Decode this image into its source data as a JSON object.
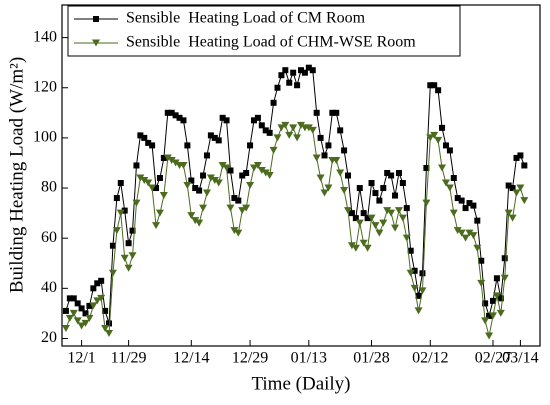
{
  "chart_data": {
    "type": "line",
    "xlabel": "Time (Daily)",
    "ylabel": "Building Heating Load (W/m²)",
    "x": [
      0,
      1,
      2,
      3,
      4,
      5,
      6,
      7,
      8,
      9,
      10,
      11,
      12,
      13,
      14,
      15,
      16,
      17,
      18,
      19,
      20,
      21,
      22,
      23,
      24,
      25,
      26,
      27,
      28,
      29,
      30,
      31,
      32,
      33,
      34,
      35,
      36,
      37,
      38,
      39,
      40,
      41,
      42,
      43,
      44,
      45,
      46,
      47,
      48,
      49,
      50,
      51,
      52,
      53,
      54,
      55,
      56,
      57,
      58,
      59,
      60,
      61,
      62,
      63,
      64,
      65,
      66,
      67,
      68,
      69,
      70,
      71,
      72,
      73,
      74,
      75,
      76,
      77,
      78,
      79,
      80,
      81,
      82,
      83,
      84,
      85,
      86,
      87,
      88,
      89,
      90,
      91,
      92,
      93,
      94,
      95,
      96,
      97,
      98,
      99,
      100,
      101,
      102,
      103,
      104,
      105,
      106,
      107,
      108,
      109,
      110,
      111,
      112,
      113,
      114,
      115,
      116,
      117
    ],
    "xlim": [
      -1,
      121
    ],
    "xticks": [
      {
        "value": 4,
        "label": "12/1"
      },
      {
        "value": 16,
        "label": "11/29"
      },
      {
        "value": 32,
        "label": "12/14"
      },
      {
        "value": 47,
        "label": "12/29"
      },
      {
        "value": 62,
        "label": "01/13"
      },
      {
        "value": 78,
        "label": "01/28"
      },
      {
        "value": 93,
        "label": "02/12"
      },
      {
        "value": 109,
        "label": "02/27"
      },
      {
        "value": 116,
        "label": "03/14"
      }
    ],
    "ylim": [
      17,
      153
    ],
    "yticks": [
      20,
      40,
      60,
      80,
      100,
      120,
      140
    ],
    "legend": "upper left",
    "series": [
      {
        "name": "Sensible  Heating Load of CM Room",
        "color": "#000000",
        "marker": "square",
        "values": [
          31,
          36,
          36,
          34,
          32,
          30,
          33,
          40,
          42,
          43,
          31,
          26,
          57,
          76,
          82,
          71,
          58,
          63,
          89,
          101,
          100,
          98,
          97,
          80,
          84,
          92,
          110,
          110,
          109,
          108,
          107,
          97,
          83,
          80,
          79,
          85,
          93,
          101,
          100,
          99,
          108,
          107,
          87,
          76,
          75,
          85,
          86,
          97,
          107,
          108,
          105,
          103,
          102,
          114,
          120,
          125,
          127,
          122,
          126,
          121,
          127,
          126,
          128,
          127,
          110,
          100,
          93,
          97,
          110,
          110,
          103,
          95,
          85,
          70,
          68,
          80,
          70,
          68,
          82,
          78,
          75,
          80,
          86,
          85,
          77,
          86,
          82,
          72,
          55,
          47,
          37,
          46,
          88,
          121,
          121,
          119,
          104,
          97,
          95,
          84,
          76,
          75,
          72,
          74,
          73,
          67,
          51,
          34,
          29,
          35,
          44,
          36,
          52,
          81,
          80,
          92,
          93,
          89
        ]
      },
      {
        "name": "Sensible  Heating Load of CHM-WSE Room",
        "color": "#4b6b1e",
        "marker": "triangle-down",
        "values": [
          24,
          28,
          30,
          27,
          25,
          26,
          28,
          33,
          35,
          36,
          24,
          22,
          46,
          63,
          70,
          52,
          48,
          53,
          74,
          84,
          83,
          82,
          80,
          65,
          70,
          77,
          92,
          91,
          90,
          89,
          89,
          81,
          69,
          67,
          66,
          72,
          78,
          84,
          83,
          82,
          89,
          88,
          72,
          63,
          62,
          71,
          72,
          81,
          88,
          89,
          87,
          86,
          85,
          95,
          100,
          104,
          105,
          101,
          104,
          100,
          105,
          104,
          104,
          103,
          92,
          84,
          78,
          80,
          91,
          91,
          86,
          79,
          71,
          57,
          56,
          66,
          58,
          56,
          68,
          65,
          62,
          66,
          71,
          70,
          64,
          71,
          68,
          60,
          46,
          40,
          31,
          39,
          74,
          100,
          101,
          99,
          88,
          82,
          80,
          70,
          63,
          62,
          60,
          62,
          61,
          56,
          42,
          27,
          21,
          29,
          37,
          30,
          44,
          70,
          68,
          78,
          80,
          75
        ]
      }
    ]
  }
}
